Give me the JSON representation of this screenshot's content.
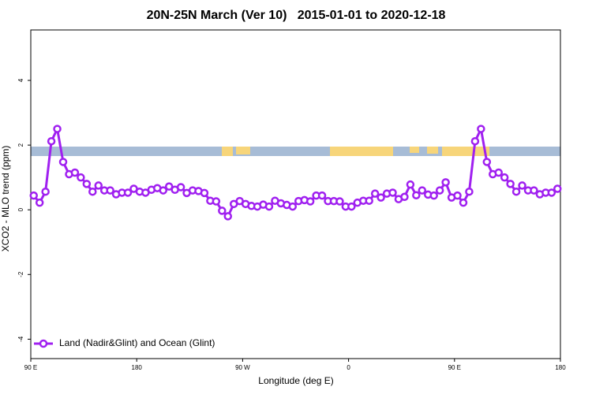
{
  "chart_data": {
    "type": "line",
    "title": "20N-25N March (Ver 10)   2015-01-01 to 2020-12-18",
    "x_label": "Longitude (deg E)",
    "y_label": "XCO2 - MLO trend (ppm)",
    "xlim": [
      90,
      540
    ],
    "ylim": [
      -4.6,
      5.56
    ],
    "xticks": [
      {
        "value": 90,
        "label": "90 E"
      },
      180,
      {
        "value": 270,
        "label": "90 W"
      },
      {
        "value": 360,
        "label": "0"
      },
      {
        "value": 450,
        "label": "90 E"
      },
      {
        "value": 540,
        "label": "180"
      }
    ],
    "yticks": [
      -4,
      -2,
      0,
      2,
      4
    ],
    "legend_position": "bottom-left",
    "x": [
      92.5,
      97.5,
      102.5,
      107.5,
      112.5,
      117.5,
      122.5,
      127.5,
      132.5,
      137.5,
      142.5,
      147.5,
      152.5,
      157.5,
      162.5,
      167.5,
      172.5,
      177.5,
      182.5,
      187.5,
      192.5,
      197.5,
      202.5,
      207.5,
      212.5,
      217.5,
      222.5,
      227.5,
      232.5,
      237.5,
      242.5,
      247.5,
      252.5,
      257.5,
      262.5,
      267.5,
      272.5,
      277.5,
      282.5,
      287.5,
      292.5,
      297.5,
      302.5,
      307.5,
      312.5,
      317.5,
      322.5,
      327.5,
      332.5,
      337.5,
      342.5,
      347.5,
      352.5,
      357.5,
      362.5,
      367.5,
      372.5,
      377.5,
      382.5,
      387.5,
      392.5,
      397.5,
      402.5,
      407.5,
      412.5,
      417.5,
      422.5,
      427.5,
      432.5,
      437.5,
      442.5,
      447.5,
      452.5,
      457.5,
      462.5,
      467.5,
      472.5,
      477.5,
      482.5,
      487.5,
      492.5,
      497.5,
      502.5,
      507.5,
      512.5,
      517.5,
      522.5,
      527.5,
      532.5,
      537.5
    ],
    "series": [
      {
        "name": "Land (Nadir&Glint) and Ocean (Glint)",
        "color": "#a020f0",
        "values": [
          0.44,
          0.22,
          0.56,
          2.12,
          2.5,
          1.48,
          1.1,
          1.15,
          1.0,
          0.8,
          0.56,
          0.75,
          0.6,
          0.6,
          0.48,
          0.53,
          0.53,
          0.65,
          0.56,
          0.53,
          0.62,
          0.67,
          0.6,
          0.72,
          0.62,
          0.7,
          0.52,
          0.6,
          0.58,
          0.52,
          0.28,
          0.26,
          -0.03,
          -0.2,
          0.18,
          0.27,
          0.18,
          0.12,
          0.1,
          0.16,
          0.1,
          0.28,
          0.2,
          0.15,
          0.1,
          0.27,
          0.3,
          0.26,
          0.44,
          0.44,
          0.27,
          0.27,
          0.26,
          0.1,
          0.1,
          0.22,
          0.28,
          0.28,
          0.5,
          0.38,
          0.5,
          0.53,
          0.33,
          0.4,
          0.78,
          0.45,
          0.6,
          0.47,
          0.44,
          0.6,
          0.85,
          0.38,
          0.44,
          0.22,
          0.56,
          2.12,
          2.5,
          1.48,
          1.1,
          1.15,
          1.0,
          0.8,
          0.56,
          0.75,
          0.6,
          0.6,
          0.48,
          0.53,
          0.53,
          0.65
        ]
      }
    ]
  }
}
